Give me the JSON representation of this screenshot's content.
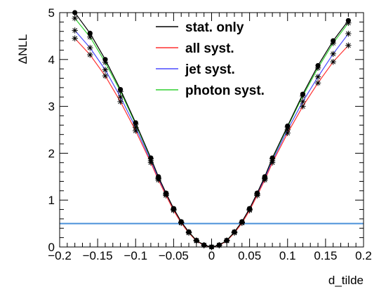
{
  "chart_data": {
    "type": "line",
    "xlabel": "d_tilde",
    "ylabel": "ΔNLL",
    "xlim": [
      -0.2,
      0.2
    ],
    "ylim": [
      0,
      5
    ],
    "x_ticks": [
      -0.2,
      -0.15,
      -0.1,
      -0.05,
      0,
      0.05,
      0.1,
      0.15,
      0.2
    ],
    "x_tick_labels": [
      "−0.2",
      "−0.15",
      "−0.1",
      "−0.05",
      "0",
      "0.05",
      "0.1",
      "0.15",
      "0.2"
    ],
    "y_ticks": [
      0,
      1,
      2,
      3,
      4,
      5
    ],
    "y_tick_labels": [
      "0",
      "1",
      "2",
      "3",
      "4",
      "5"
    ],
    "grid": false,
    "legend_position": "top-center",
    "x": [
      -0.18,
      -0.16,
      -0.14,
      -0.12,
      -0.1,
      -0.08,
      -0.07,
      -0.06,
      -0.05,
      -0.04,
      -0.03,
      -0.02,
      -0.01,
      0,
      0.01,
      0.02,
      0.03,
      0.04,
      0.05,
      0.06,
      0.07,
      0.08,
      0.1,
      0.12,
      0.14,
      0.16,
      0.18
    ],
    "series": [
      {
        "name": "stat. only",
        "color": "#000000",
        "marker": "dot",
        "values": [
          5.0,
          4.56,
          4.0,
          3.36,
          2.65,
          1.9,
          1.5,
          1.15,
          0.82,
          0.54,
          0.32,
          0.14,
          0.04,
          0.0,
          0.04,
          0.14,
          0.32,
          0.54,
          0.82,
          1.15,
          1.5,
          1.9,
          2.58,
          3.26,
          3.87,
          4.4,
          4.83
        ]
      },
      {
        "name": "all syst.",
        "color": "#ff3030",
        "marker": "star",
        "values": [
          4.45,
          4.1,
          3.65,
          3.1,
          2.48,
          1.8,
          1.43,
          1.1,
          0.78,
          0.51,
          0.3,
          0.13,
          0.035,
          0.0,
          0.035,
          0.13,
          0.3,
          0.51,
          0.78,
          1.1,
          1.43,
          1.8,
          2.43,
          3.0,
          3.5,
          3.95,
          4.3
        ]
      },
      {
        "name": "jet syst.",
        "color": "#4a4aff",
        "marker": "star",
        "values": [
          4.62,
          4.25,
          3.78,
          3.2,
          2.55,
          1.84,
          1.46,
          1.12,
          0.8,
          0.52,
          0.31,
          0.135,
          0.037,
          0.0,
          0.037,
          0.135,
          0.31,
          0.52,
          0.8,
          1.12,
          1.46,
          1.84,
          2.5,
          3.1,
          3.63,
          4.12,
          4.55
        ]
      },
      {
        "name": "photon syst.",
        "color": "#30d030",
        "marker": "star",
        "values": [
          4.88,
          4.48,
          3.94,
          3.32,
          2.62,
          1.88,
          1.48,
          1.14,
          0.81,
          0.53,
          0.32,
          0.14,
          0.04,
          0.0,
          0.04,
          0.14,
          0.32,
          0.53,
          0.81,
          1.14,
          1.48,
          1.88,
          2.56,
          3.22,
          3.82,
          4.35,
          4.78
        ]
      }
    ],
    "hlines": [
      {
        "y": 0.5,
        "color": "#4a90d9"
      }
    ]
  }
}
